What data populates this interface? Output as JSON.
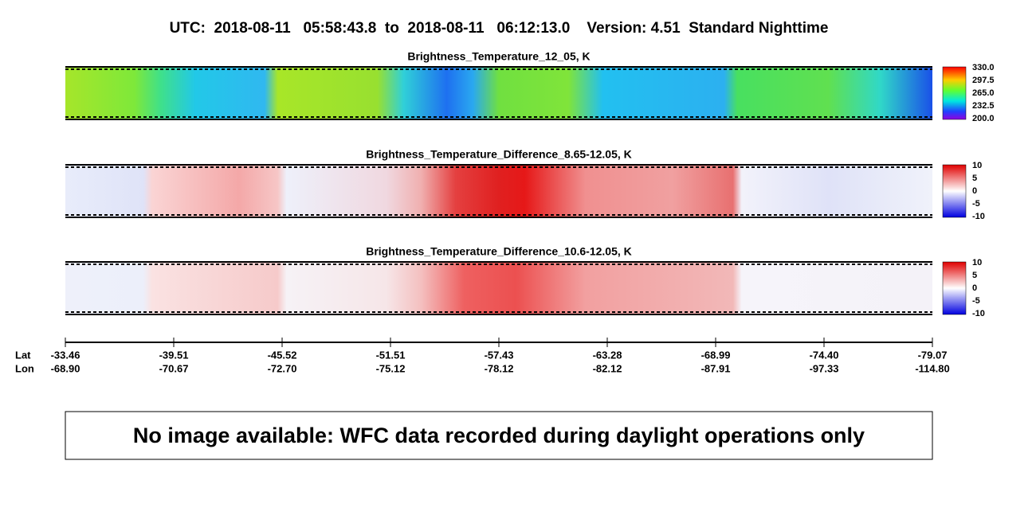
{
  "header": {
    "title": "UTC:  2018-08-11   05:58:43.8  to  2018-08-11   06:12:13.0    Version: 4.51  Standard Nighttime"
  },
  "panels": [
    {
      "title": "Brightness_Temperature_12_05, K",
      "colorbar_labels": [
        "330.0",
        "297.5",
        "265.0",
        "232.5",
        "200.0"
      ]
    },
    {
      "title": "Brightness_Temperature_Difference_8.65-12.05, K",
      "colorbar_labels": [
        "10",
        "5",
        "0",
        "-5",
        "-10"
      ]
    },
    {
      "title": "Brightness_Temperature_Difference_10.6-12.05, K",
      "colorbar_labels": [
        "10",
        "5",
        "0",
        "-5",
        "-10"
      ]
    }
  ],
  "axis": {
    "lat_label": "Lat",
    "lon_label": "Lon",
    "lat": [
      "-33.46",
      "-39.51",
      "-45.52",
      "-51.51",
      "-57.43",
      "-63.28",
      "-68.99",
      "-74.40",
      "-79.07"
    ],
    "lon": [
      "-68.90",
      "-70.67",
      "-72.70",
      "-75.12",
      "-78.12",
      "-82.12",
      "-87.91",
      "-97.33",
      "-114.80"
    ]
  },
  "message": "No image available: WFC data recorded during daylight operations only"
}
